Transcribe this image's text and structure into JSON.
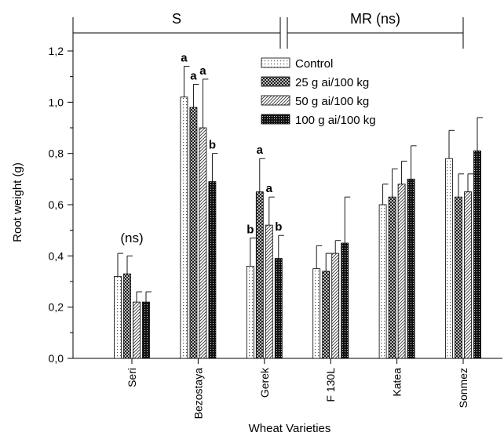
{
  "chart_data": {
    "type": "bar",
    "xlabel": "Wheat Varieties",
    "ylabel": "Root weight (g)",
    "ylim": [
      0,
      1.2
    ],
    "yticks": [
      "0,0",
      "0,2",
      "0,4",
      "0,6",
      "0,8",
      "1,0",
      "1,2"
    ],
    "ytick_values": [
      0,
      0.2,
      0.4,
      0.6,
      0.8,
      1.0,
      1.2
    ],
    "categories": [
      "Seri",
      "Bezostaya",
      "Gerek",
      "F 130L",
      "Katea",
      "Sonmez"
    ],
    "series": [
      {
        "name": "Control",
        "pattern": "dots",
        "values": [
          0.32,
          1.02,
          0.36,
          0.35,
          0.6,
          0.78
        ],
        "errors": [
          0.09,
          0.12,
          0.11,
          0.09,
          0.08,
          0.11
        ]
      },
      {
        "name": "25 g ai/100 kg",
        "pattern": "crosshatch",
        "values": [
          0.33,
          0.98,
          0.65,
          0.34,
          0.63,
          0.63
        ],
        "errors": [
          0.07,
          0.09,
          0.13,
          0.07,
          0.11,
          0.09
        ]
      },
      {
        "name": "50 g ai/100 kg",
        "pattern": "diagonal",
        "values": [
          0.22,
          0.9,
          0.52,
          0.41,
          0.68,
          0.65
        ],
        "errors": [
          0.04,
          0.19,
          0.11,
          0.05,
          0.09,
          0.07
        ]
      },
      {
        "name": "100 g ai/100 kg",
        "pattern": "dense",
        "values": [
          0.22,
          0.69,
          0.39,
          0.45,
          0.7,
          0.81
        ],
        "errors": [
          0.04,
          0.11,
          0.09,
          0.18,
          0.13,
          0.13
        ]
      }
    ],
    "significance_letters": [
      {
        "category": "Bezostaya",
        "series": "Control",
        "letter": "a"
      },
      {
        "category": "Bezostaya",
        "series": "25 g ai/100 kg",
        "letter": "a"
      },
      {
        "category": "Bezostaya",
        "series": "50 g ai/100 kg",
        "letter": "a"
      },
      {
        "category": "Bezostaya",
        "series": "100 g ai/100 kg",
        "letter": "b"
      },
      {
        "category": "Gerek",
        "series": "Control",
        "letter": "b"
      },
      {
        "category": "Gerek",
        "series": "25 g ai/100 kg",
        "letter": "a"
      },
      {
        "category": "Gerek",
        "series": "50 g ai/100 kg",
        "letter": "a"
      },
      {
        "category": "Gerek",
        "series": "100 g ai/100 kg",
        "letter": "b"
      }
    ],
    "annotations": [
      {
        "category": "Seri",
        "text": "(ns)"
      }
    ],
    "groups": [
      {
        "label": "S",
        "from": "Seri",
        "to": "Gerek"
      },
      {
        "label": "MR (ns)",
        "from": "F 130L",
        "to": "Sonmez"
      }
    ],
    "legend_position": "top-right",
    "grid": false
  }
}
